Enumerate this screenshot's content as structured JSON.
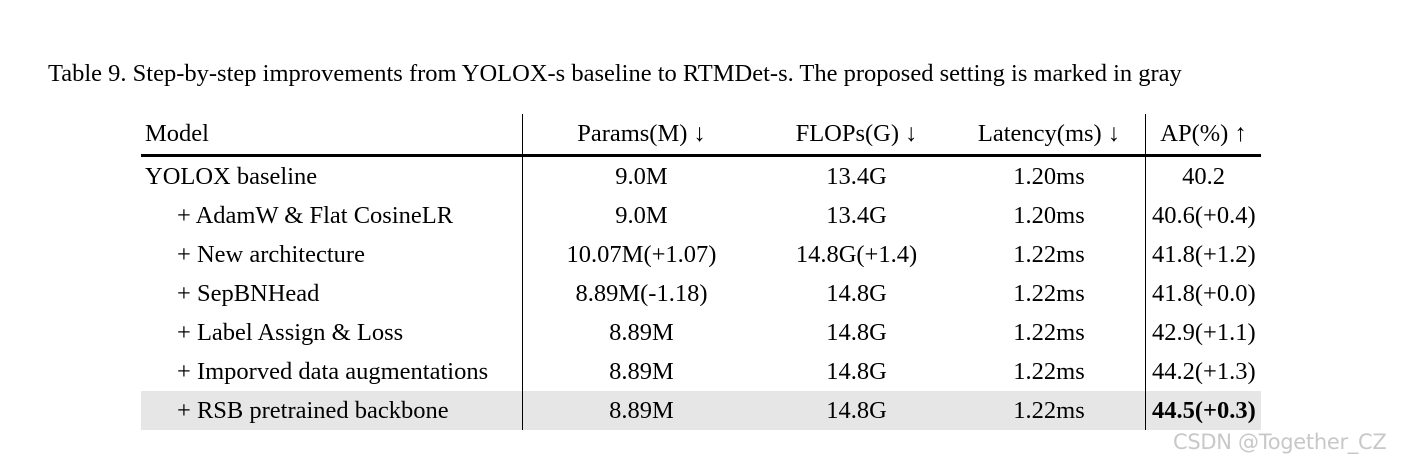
{
  "caption": "Table 9. Step-by-step improvements from YOLOX-s baseline to RTMDet-s. The proposed setting is marked in gray",
  "table": {
    "headers": [
      "Model",
      "Params(M) ↓",
      "FLOPs(G) ↓",
      "Latency(ms) ↓",
      "AP(%) ↑"
    ],
    "rows": [
      {
        "model": "YOLOX baseline",
        "params": "9.0M",
        "flops": "13.4G",
        "latency": "1.20ms",
        "ap": "40.2"
      },
      {
        "model": "+ AdamW & Flat CosineLR",
        "params": "9.0M",
        "flops": "13.4G",
        "latency": "1.20ms",
        "ap": "40.6(+0.4)"
      },
      {
        "model": "+ New architecture",
        "params": "10.07M(+1.07)",
        "flops": "14.8G(+1.4)",
        "latency": "1.22ms",
        "ap": "41.8(+1.2)"
      },
      {
        "model": "+ SepBNHead",
        "params": "8.89M(-1.18)",
        "flops": "14.8G",
        "latency": "1.22ms",
        "ap": "41.8(+0.0)"
      },
      {
        "model": "+ Label Assign & Loss",
        "params": "8.89M",
        "flops": "14.8G",
        "latency": "1.22ms",
        "ap": "42.9(+1.1)"
      },
      {
        "model": "+ Imporved data augmentations",
        "params": "8.89M",
        "flops": "14.8G",
        "latency": "1.22ms",
        "ap": "44.2(+1.3)"
      },
      {
        "model": "+ RSB pretrained backbone",
        "params": "8.89M",
        "flops": "14.8G",
        "latency": "1.22ms",
        "ap": "44.5(+0.3)"
      }
    ],
    "highlight_row_index": 6,
    "highlight_color": "#e6e6e6"
  },
  "watermark": "CSDN @Together_CZ"
}
